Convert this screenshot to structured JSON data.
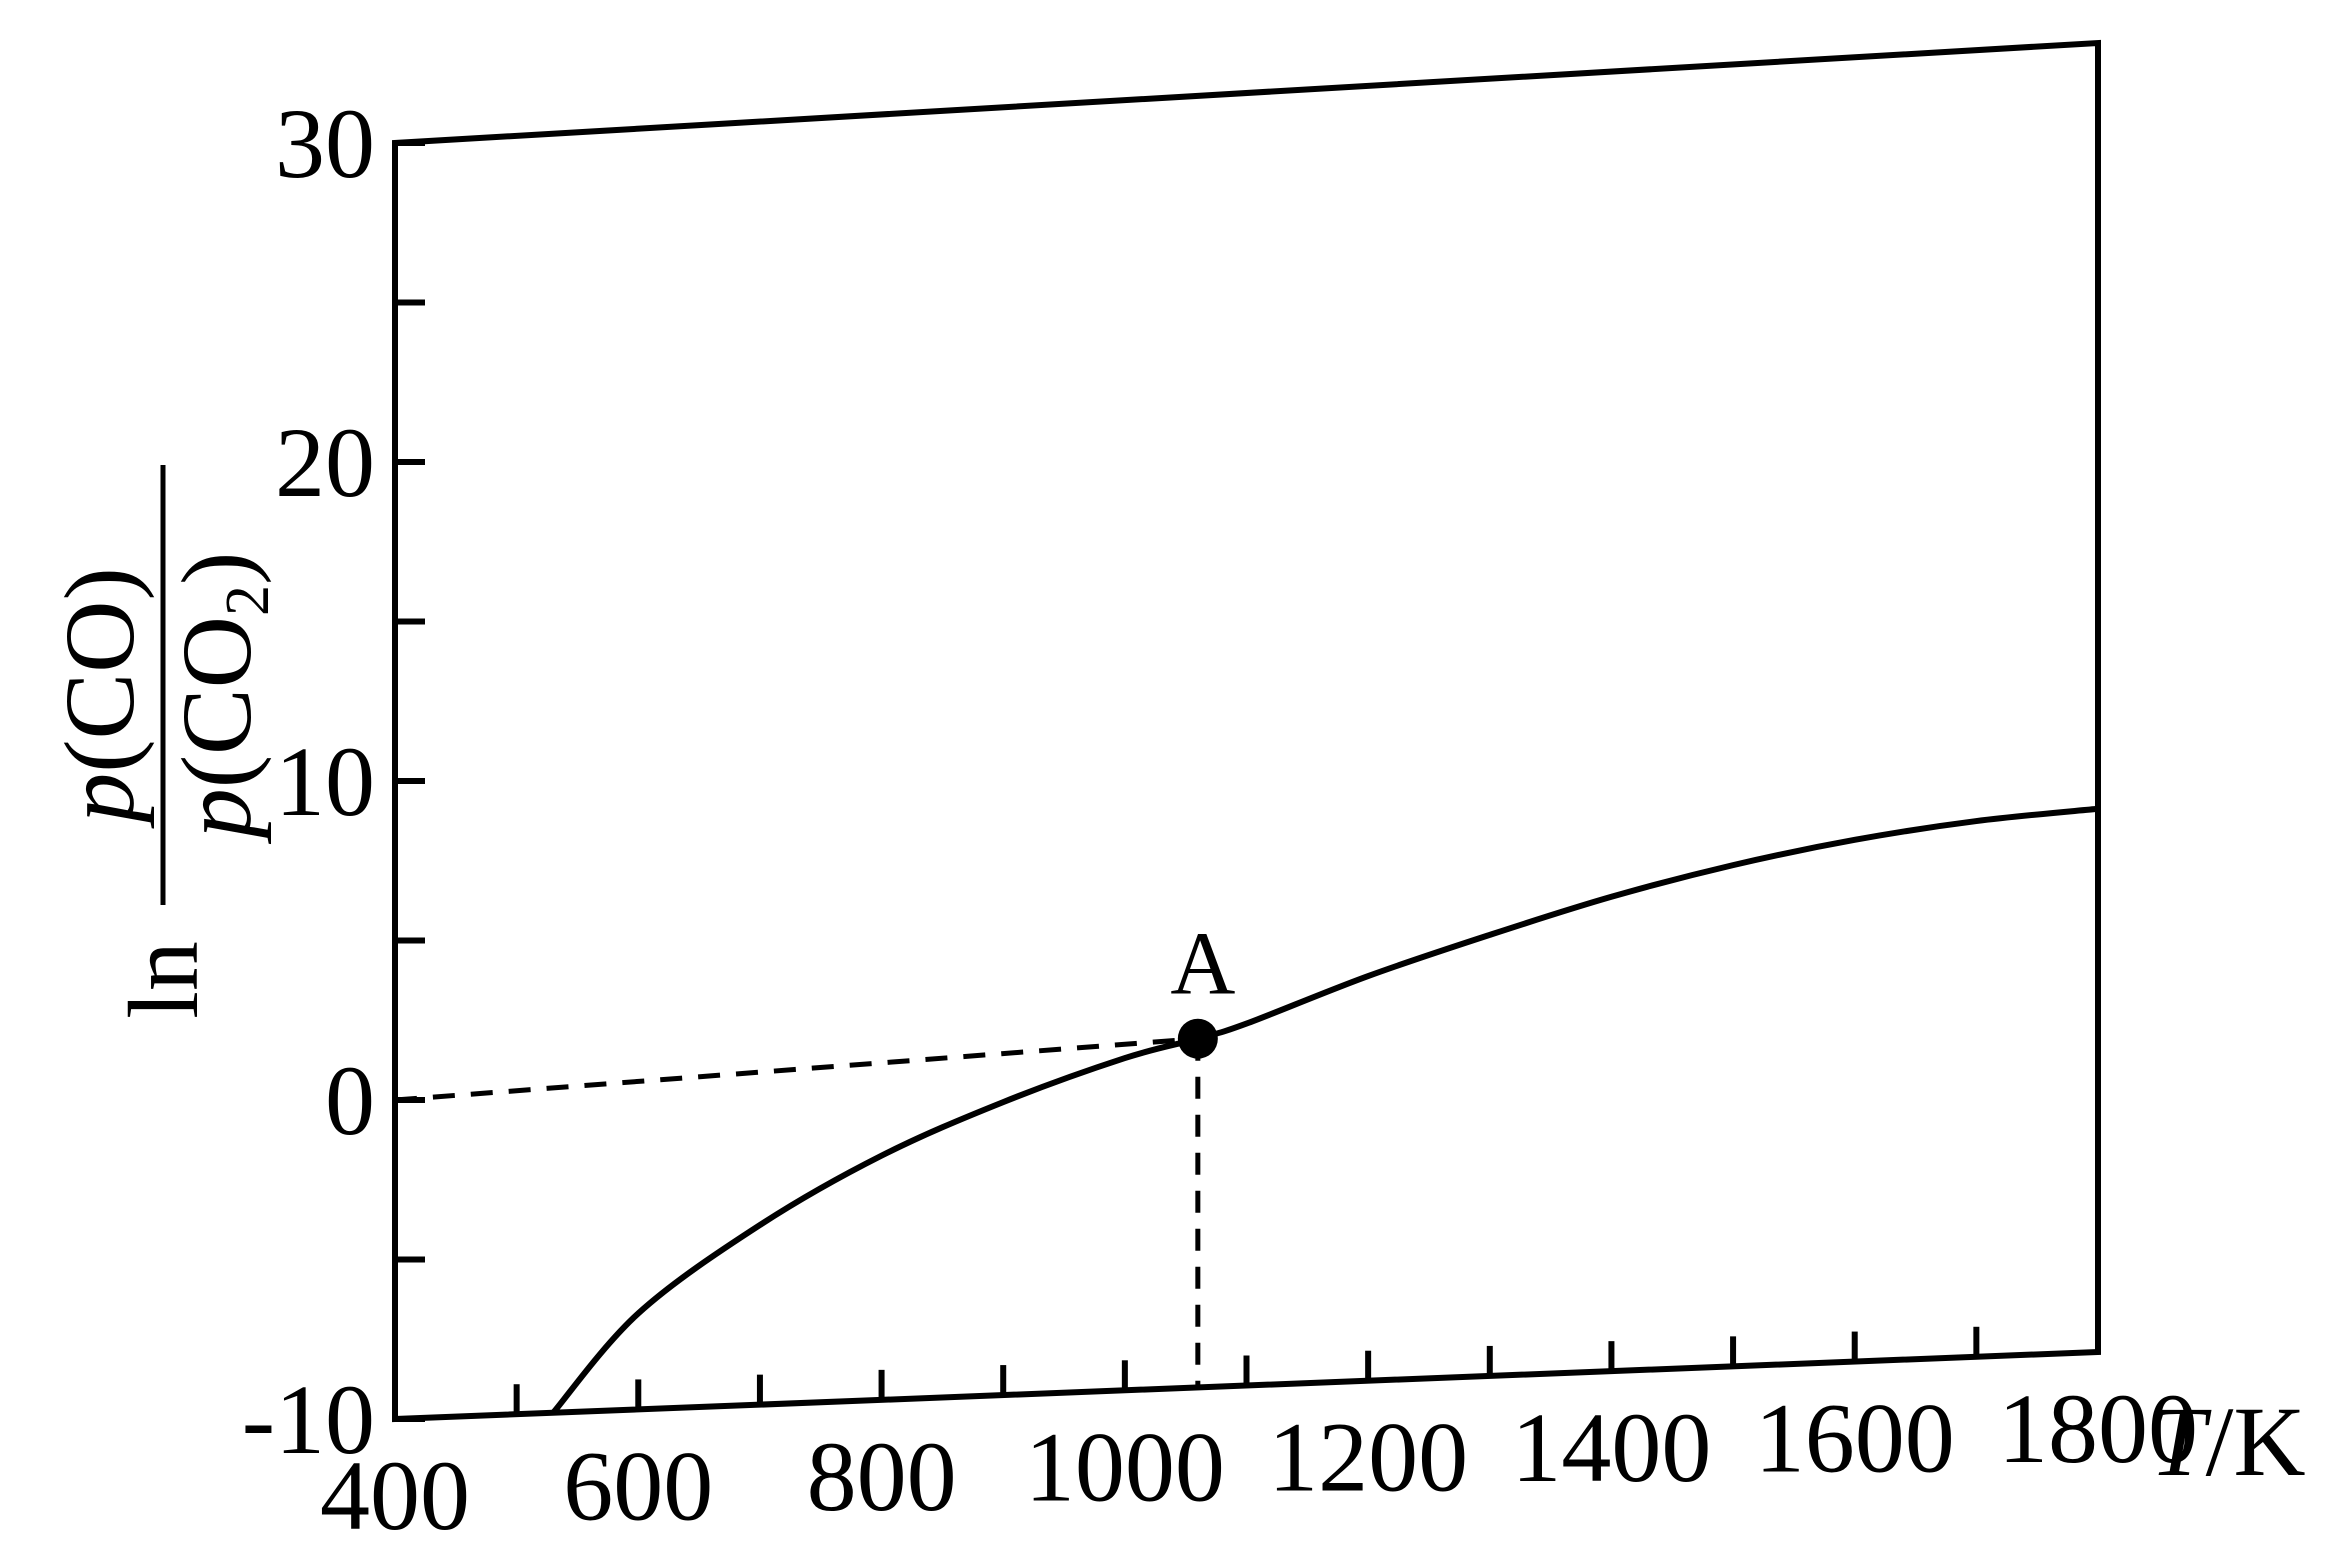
{
  "chart_data": {
    "type": "line",
    "title": "",
    "xlabel": "T/K",
    "ylabel": "ln p(CO)/p(CO2)",
    "xlim": [
      400,
      1800
    ],
    "ylim": [
      -10,
      30
    ],
    "x_ticks": [
      400,
      600,
      800,
      1000,
      1200,
      1400,
      1600,
      1800
    ],
    "x_tick_labels": [
      "400",
      "600",
      "800",
      "1000",
      "1200",
      "1400",
      "1600",
      "1800"
    ],
    "y_ticks": [
      -10,
      0,
      10,
      20,
      30
    ],
    "y_tick_labels": [
      "-10",
      "0",
      "10",
      "20",
      "30"
    ],
    "grid": false,
    "series": [
      {
        "x": [
          530,
          600,
          700,
          800,
          900,
          1000,
          1060,
          1100,
          1200,
          1300,
          1400,
          1500,
          1600,
          1700,
          1800
        ],
        "y": [
          -10,
          -7.0,
          -4.4,
          -2.4,
          -0.9,
          0.3,
          0.8,
          1.2,
          2.5,
          3.6,
          4.6,
          5.4,
          6.0,
          6.4,
          6.6
        ]
      }
    ],
    "annotations": [
      {
        "label": "A",
        "x": 1060,
        "y": 0.8
      }
    ]
  }
}
